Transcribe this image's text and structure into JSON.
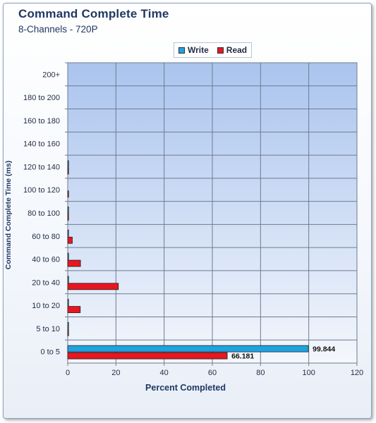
{
  "chart_data": {
    "type": "bar",
    "orientation": "horizontal",
    "title": "Command  Complete Time",
    "subtitle": "8-Channels - 720P",
    "xlabel": "Percent Completed",
    "ylabel": "Command Complete Time (ms)",
    "xlim": [
      0,
      120
    ],
    "xticks": [
      "0",
      "20",
      "40",
      "60",
      "80",
      "100",
      "120"
    ],
    "grid": true,
    "legend_position": "top-center",
    "categories": [
      "0 to 5",
      "5 to 10",
      "10 to 20",
      "20 to 40",
      "40 to 60",
      "60 to 80",
      "80 to 100",
      "100 to 120",
      "120 to 140",
      "140 to 160",
      "160 to 180",
      "180 to 200",
      "200+"
    ],
    "series": [
      {
        "name": "Write",
        "color": "#1fa3e0",
        "values": [
          99.844,
          0.01,
          0.04,
          0.05,
          0.03,
          0.02,
          0.01,
          0,
          0.005,
          0,
          0,
          0,
          0
        ]
      },
      {
        "name": "Read",
        "color": "#e8161f",
        "values": [
          66.181,
          0.3,
          5.2,
          21.0,
          5.3,
          1.9,
          0.1,
          0.05,
          0.02,
          0,
          0,
          0,
          0
        ]
      }
    ],
    "value_labels": [
      {
        "series": "Write",
        "category": "0 to 5",
        "text": "99.844"
      },
      {
        "series": "Read",
        "category": "0 to 5",
        "text": "66.181"
      }
    ]
  }
}
